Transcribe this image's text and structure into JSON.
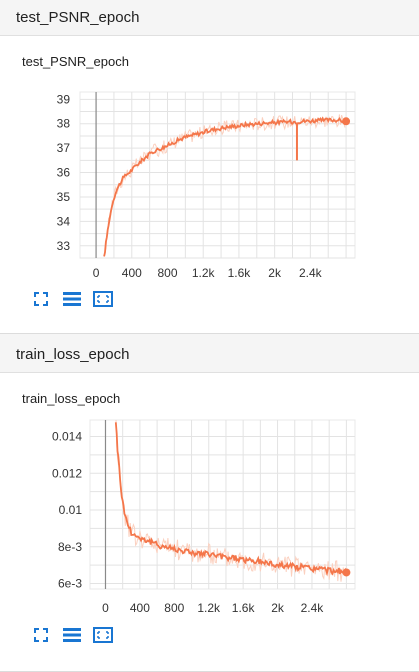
{
  "sections": [
    {
      "header": "test_PSNR_epoch",
      "card_title": "test_PSNR_epoch",
      "chart_data": {
        "type": "line",
        "title": "test_PSNR_epoch",
        "xlabel": "",
        "ylabel": "",
        "xlim": [
          -180,
          2900
        ],
        "ylim": [
          32.5,
          39.3
        ],
        "x_ticks": [
          "0",
          "400",
          "800",
          "1.2k",
          "1.6k",
          "2k",
          "2.4k"
        ],
        "x_tick_values": [
          0,
          400,
          800,
          1200,
          1600,
          2000,
          2400
        ],
        "y_ticks": [
          "33",
          "34",
          "35",
          "36",
          "37",
          "38",
          "39"
        ],
        "y_tick_values": [
          33,
          34,
          35,
          36,
          37,
          38,
          39
        ],
        "grid": true,
        "series": [
          {
            "color": "#f4764a",
            "x": [
              90,
              110,
              140,
              180,
              220,
              260,
              300,
              350,
              400,
              450,
              500,
              560,
              600,
              660,
              700,
              760,
              800,
              900,
              1000,
              1100,
              1200,
              1300,
              1400,
              1500,
              1600,
              1700,
              1800,
              1900,
              2000,
              2100,
              2200,
              2300,
              2400,
              2500,
              2600,
              2700,
              2800
            ],
            "y": [
              32.5,
              33.1,
              33.9,
              34.7,
              35.2,
              35.5,
              35.75,
              35.95,
              36.1,
              36.3,
              36.45,
              36.65,
              36.75,
              36.9,
              36.95,
              37.05,
              37.1,
              37.3,
              37.45,
              37.55,
              37.65,
              37.75,
              37.82,
              37.88,
              37.92,
              37.97,
              38.0,
              38.03,
              38.05,
              38.07,
              38.08,
              38.1,
              38.12,
              38.13,
              38.15,
              38.15,
              38.1
            ]
          }
        ],
        "annotations": [
          {
            "x": 2250,
            "y_low": 36.5,
            "y_high": 38.05,
            "kind": "spike"
          }
        ]
      }
    },
    {
      "header": "train_loss_epoch",
      "card_title": "train_loss_epoch",
      "chart_data": {
        "type": "line",
        "title": "train_loss_epoch",
        "xlabel": "",
        "ylabel": "",
        "xlim": [
          -180,
          2900
        ],
        "ylim": [
          0.0057,
          0.0149
        ],
        "x_ticks": [
          "0",
          "400",
          "800",
          "1.2k",
          "1.6k",
          "2k",
          "2.4k"
        ],
        "x_tick_values": [
          0,
          400,
          800,
          1200,
          1600,
          2000,
          2400
        ],
        "y_ticks": [
          "6e-3",
          "8e-3",
          "0.01",
          "0.012",
          "0.014"
        ],
        "y_tick_values": [
          0.006,
          0.008,
          0.01,
          0.012,
          0.014
        ],
        "grid": true,
        "series": [
          {
            "color": "#f4764a",
            "x": [
              120,
              140,
              160,
              180,
              200,
              230,
              260,
              300,
              350,
              400,
              450,
              500,
              600,
              700,
              800,
              900,
              1000,
              1100,
              1200,
              1300,
              1400,
              1500,
              1600,
              1700,
              1800,
              1900,
              2000,
              2100,
              2200,
              2300,
              2400,
              2500,
              2600,
              2700,
              2800
            ],
            "y": [
              0.0149,
              0.0133,
              0.0123,
              0.0112,
              0.0104,
              0.0097,
              0.0092,
              0.0088,
              0.0086,
              0.0085,
              0.0084,
              0.0083,
              0.0081,
              0.008,
              0.0079,
              0.0078,
              0.0077,
              0.0076,
              0.0076,
              0.0075,
              0.0074,
              0.0074,
              0.0073,
              0.0072,
              0.0072,
              0.0071,
              0.007,
              0.007,
              0.0069,
              0.0069,
              0.0068,
              0.0068,
              0.0067,
              0.0067,
              0.0066
            ]
          }
        ]
      }
    }
  ],
  "toolbar": {
    "icons": [
      "expand-icon",
      "toggle-log-icon",
      "fit-domain-icon"
    ],
    "color": "#1976d2"
  }
}
